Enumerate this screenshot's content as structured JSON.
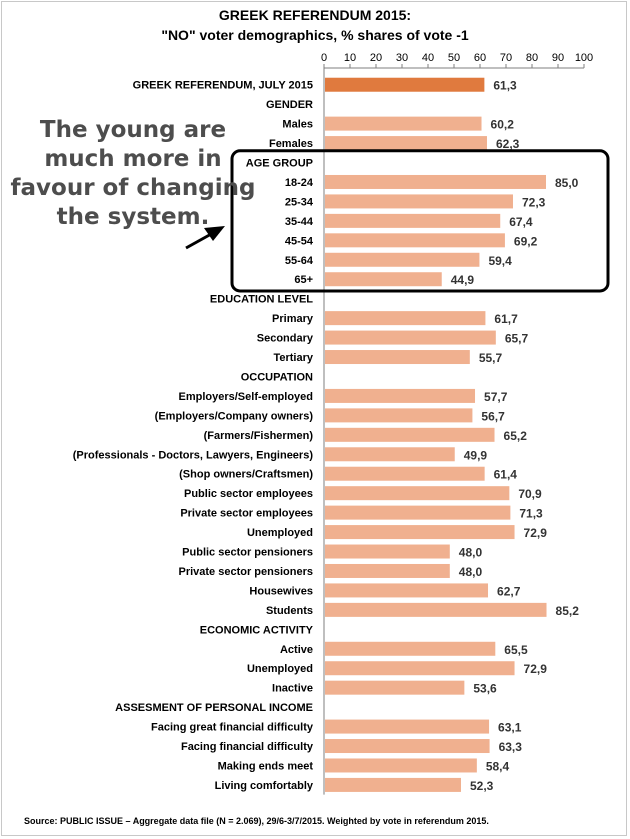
{
  "title_line1": "GREEK REFERENDUM 2015:",
  "title_line2": "\"NO\" voter demographics, % shares of vote -1",
  "annotation": "The young are much more in favour of changing the system.",
  "source": "Source: PUBLIC ISSUE – Aggregate data file (N = 2.069),  29/6-3/7/2015. Weighted by vote in referendum 2015.",
  "colors": {
    "highlight": "#e07a3e",
    "bar": "#f0b08f"
  },
  "chart_data": {
    "type": "bar",
    "orientation": "horizontal",
    "xlim": [
      0,
      100
    ],
    "xticks": [
      0,
      10,
      20,
      30,
      40,
      50,
      60,
      70,
      80,
      90,
      100
    ],
    "rows": [
      {
        "label": "GREEK REFERENDUM, JULY 2015",
        "value": 61.3,
        "display": "61,3",
        "highlight": true
      },
      {
        "label": "GENDER",
        "header": true
      },
      {
        "label": "Males",
        "value": 60.2,
        "display": "60,2"
      },
      {
        "label": "Females",
        "value": 62.3,
        "display": "62,3"
      },
      {
        "label": "AGE GROUP",
        "header": true
      },
      {
        "label": "18-24",
        "value": 85.0,
        "display": "85,0"
      },
      {
        "label": "25-34",
        "value": 72.3,
        "display": "72,3"
      },
      {
        "label": "35-44",
        "value": 67.4,
        "display": "67,4"
      },
      {
        "label": "45-54",
        "value": 69.2,
        "display": "69,2"
      },
      {
        "label": "55-64",
        "value": 59.4,
        "display": "59,4"
      },
      {
        "label": "65+",
        "value": 44.9,
        "display": "44,9"
      },
      {
        "label": "EDUCATION LEVEL",
        "header": true
      },
      {
        "label": "Primary",
        "value": 61.7,
        "display": "61,7"
      },
      {
        "label": "Secondary",
        "value": 65.7,
        "display": "65,7"
      },
      {
        "label": "Tertiary",
        "value": 55.7,
        "display": "55,7"
      },
      {
        "label": "OCCUPATION",
        "header": true
      },
      {
        "label": "Employers/Self-employed",
        "value": 57.7,
        "display": "57,7"
      },
      {
        "label": "(Employers/Company owners)",
        "value": 56.7,
        "display": "56,7"
      },
      {
        "label": "(Farmers/Fishermen)",
        "value": 65.2,
        "display": "65,2"
      },
      {
        "label": "(Professionals - Doctors, Lawyers, Engineers)",
        "value": 49.9,
        "display": "49,9"
      },
      {
        "label": "(Shop owners/Craftsmen)",
        "value": 61.4,
        "display": "61,4"
      },
      {
        "label": "Public sector employees",
        "value": 70.9,
        "display": "70,9"
      },
      {
        "label": "Private sector employees",
        "value": 71.3,
        "display": "71,3"
      },
      {
        "label": "Unemployed",
        "value": 72.9,
        "display": "72,9"
      },
      {
        "label": "Public sector pensioners",
        "value": 48.0,
        "display": "48,0"
      },
      {
        "label": "Private sector pensioners",
        "value": 48.0,
        "display": "48,0"
      },
      {
        "label": "Housewives",
        "value": 62.7,
        "display": "62,7"
      },
      {
        "label": "Students",
        "value": 85.2,
        "display": "85,2"
      },
      {
        "label": "ECONOMIC ACTIVITY",
        "header": true
      },
      {
        "label": "Active",
        "value": 65.5,
        "display": "65,5"
      },
      {
        "label": "Unemployed",
        "value": 72.9,
        "display": "72,9"
      },
      {
        "label": "Inactive",
        "value": 53.6,
        "display": "53,6"
      },
      {
        "label": "ASSESMENT OF PERSONAL INCOME",
        "header": true
      },
      {
        "label": "Facing great financial difficulty",
        "value": 63.1,
        "display": "63,1"
      },
      {
        "label": "Facing financial difficulty",
        "value": 63.3,
        "display": "63,3"
      },
      {
        "label": "Making ends meet",
        "value": 58.4,
        "display": "58,4"
      },
      {
        "label": "Living comfortably",
        "value": 52.3,
        "display": "52,3"
      }
    ]
  }
}
